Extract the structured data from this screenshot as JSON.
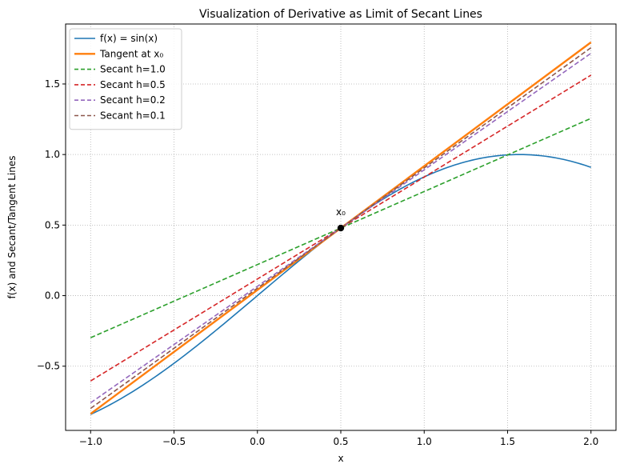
{
  "chart_data": {
    "type": "line",
    "title": "Visualization of Derivative as Limit of Secant Lines",
    "xlabel": "x",
    "ylabel": "f(x) and Secant/Tangent Lines",
    "xlim": [
      -1.15,
      2.15
    ],
    "ylim": [
      -0.955,
      1.925
    ],
    "xticks": [
      -1.0,
      -0.5,
      0.0,
      0.5,
      1.0,
      1.5,
      2.0
    ],
    "xtick_labels": [
      "−1.0",
      "−0.5",
      "0.0",
      "0.5",
      "1.0",
      "1.5",
      "2.0"
    ],
    "yticks": [
      -0.5,
      0.0,
      0.5,
      1.0,
      1.5
    ],
    "ytick_labels": [
      "−0.5",
      "0.0",
      "0.5",
      "1.0",
      "1.5"
    ],
    "grid": true,
    "legend_position": "top-left",
    "point": {
      "x": 0.5,
      "y": 0.479,
      "label": "x₀",
      "color": "#000000"
    },
    "x_domain": [
      -1.0,
      2.0
    ],
    "series": [
      {
        "name": "f(x) = sin(x)",
        "kind": "function",
        "color": "#1f77b4",
        "dash": "solid",
        "samples": [
          [
            -1.0,
            -0.841
          ],
          [
            -0.75,
            -0.682
          ],
          [
            -0.5,
            -0.479
          ],
          [
            -0.25,
            -0.247
          ],
          [
            0.0,
            0.0
          ],
          [
            0.25,
            0.247
          ],
          [
            0.5,
            0.479
          ],
          [
            0.75,
            0.682
          ],
          [
            1.0,
            0.841
          ],
          [
            1.25,
            0.949
          ],
          [
            1.5,
            0.997
          ],
          [
            1.571,
            1.0
          ],
          [
            1.75,
            0.984
          ],
          [
            2.0,
            0.909
          ]
        ]
      },
      {
        "name": "Tangent at x₀",
        "kind": "line",
        "color": "#ff7f0e",
        "dash": "solid",
        "slope": 0.8776,
        "point": [
          0.5,
          0.479
        ]
      },
      {
        "name": "Secant h=1.0",
        "kind": "line",
        "color": "#2ca02c",
        "dash": "dashed",
        "slope": 0.5181,
        "point": [
          0.5,
          0.479
        ]
      },
      {
        "name": "Secant h=0.5",
        "kind": "line",
        "color": "#d62728",
        "dash": "dashed",
        "slope": 0.7223,
        "point": [
          0.5,
          0.479
        ]
      },
      {
        "name": "Secant h=0.2",
        "kind": "line",
        "color": "#9467bd",
        "dash": "dashed",
        "slope": 0.8256,
        "point": [
          0.5,
          0.479
        ]
      },
      {
        "name": "Secant h=0.1",
        "kind": "line",
        "color": "#8c564b",
        "dash": "dashed",
        "slope": 0.8521,
        "point": [
          0.5,
          0.479
        ]
      }
    ]
  }
}
